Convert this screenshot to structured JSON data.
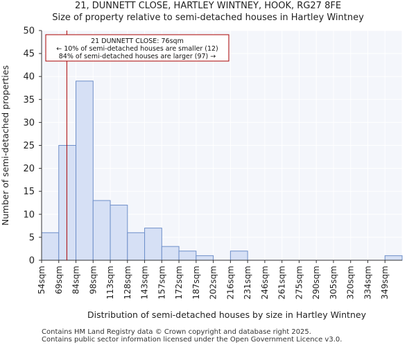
{
  "chart_data": {
    "type": "bar",
    "title": "21, DUNNETT CLOSE, HARTLEY WINTNEY, HOOK, RG27 8FE",
    "subtitle": "Size of property relative to semi-detached houses in Hartley Wintney",
    "xlabel": "Distribution of semi-detached houses by size in Hartley Wintney",
    "ylabel": "Number of semi-detached properties",
    "ylim": [
      0,
      50
    ],
    "yticks": [
      0,
      5,
      10,
      15,
      20,
      25,
      30,
      35,
      40,
      45,
      50
    ],
    "categories": [
      "54sqm",
      "69sqm",
      "84sqm",
      "98sqm",
      "113sqm",
      "128sqm",
      "143sqm",
      "157sqm",
      "172sqm",
      "187sqm",
      "202sqm",
      "216sqm",
      "231sqm",
      "246sqm",
      "261sqm",
      "275sqm",
      "290sqm",
      "305sqm",
      "320sqm",
      "334sqm",
      "349sqm"
    ],
    "values": [
      6,
      25,
      39,
      13,
      12,
      6,
      7,
      3,
      2,
      1,
      0,
      2,
      0,
      0,
      0,
      0,
      0,
      0,
      0,
      0,
      1
    ],
    "marker": {
      "value_sqm": 76,
      "bin_index_position": 1.47,
      "color": "#aa0000"
    },
    "annotation": {
      "line1": "21 DUNNETT CLOSE: 76sqm",
      "line2": "← 10% of semi-detached houses are smaller (12)",
      "line3": "84% of semi-detached houses are larger (97) →"
    },
    "grid": true,
    "bar_fill": "#d6e0f5",
    "bar_stroke": "#6e8fc9",
    "plot_background": "#f4f6fb"
  },
  "footer": {
    "line1": "Contains HM Land Registry data © Crown copyright and database right 2025.",
    "line2": "Contains public sector information licensed under the Open Government Licence v3.0."
  }
}
